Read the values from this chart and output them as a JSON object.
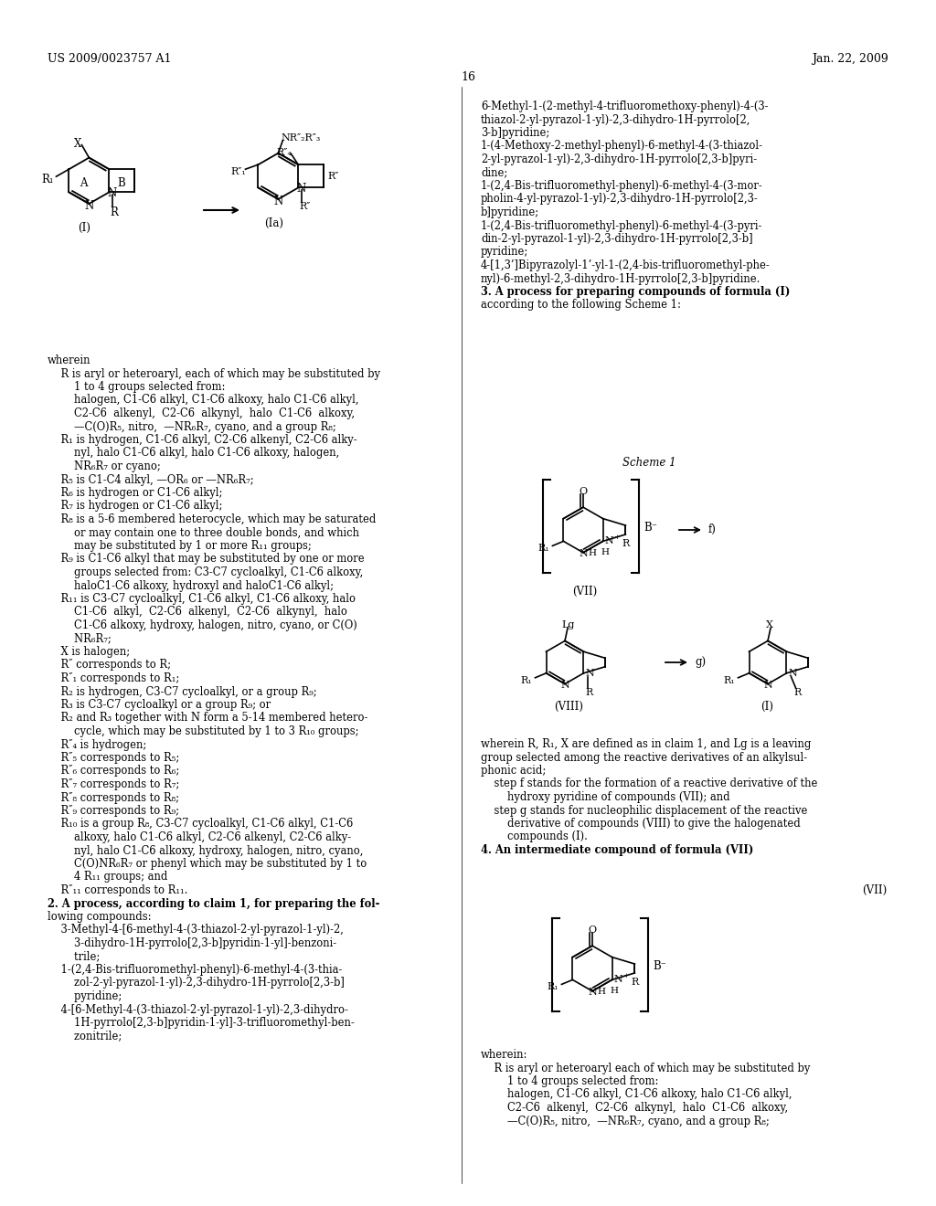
{
  "background_color": "#ffffff",
  "header_left": "US 2009/0023757 A1",
  "header_right": "Jan. 22, 2009",
  "page_number": "16",
  "font_color": "#000000",
  "body_text_col2": [
    "6-Methyl-1-(2-methyl-4-trifluoromethoxy-phenyl)-4-(3-",
    "thiazol-2-yl-pyrazol-1-yl)-2,3-dihydro-1H-pyrrolo[2,",
    "3-b]pyridine;",
    "1-(4-Methoxy-2-methyl-phenyl)-6-methyl-4-(3-thiazol-",
    "2-yl-pyrazol-1-yl)-2,3-dihydro-1H-pyrrolo[2,3-b]pyri-",
    "dine;",
    "1-(2,4-Bis-trifluoromethyl-phenyl)-6-methyl-4-(3-mor-",
    "pholin-4-yl-pyrazol-1-yl)-2,3-dihydro-1H-pyrrolo[2,3-",
    "b]pyridine;",
    "1-(2,4-Bis-trifluoromethyl-phenyl)-6-methyl-4-(3-pyri-",
    "din-2-yl-pyrazol-1-yl)-2,3-dihydro-1H-pyrrolo[2,3-b]",
    "pyridine;",
    "4-[1,3’]Bipyrazolyl-1’-yl-1-(2,4-bis-trifluoromethyl-phe-",
    "nyl)-6-methyl-2,3-dihydro-1H-pyrrolo[2,3-b]pyridine.",
    "3. A process for preparing compounds of formula (I)",
    "according to the following Scheme 1:"
  ],
  "col2_scheme_description": [
    "wherein R, R₁, X are defined as in claim 1, and Lg is a leaving",
    "group selected among the reactive derivatives of an alkylsul-",
    "phonic acid;",
    "    step f stands for the formation of a reactive derivative of the",
    "        hydroxy pyridine of compounds (VII); and",
    "    step g stands for nucleophilic displacement of the reactive",
    "        derivative of compounds (VIII) to give the halogenated",
    "        compounds (I).",
    "4. An intermediate compound of formula (VII)"
  ],
  "col1_body": [
    "wherein",
    "    R is aryl or heteroaryl, each of which may be substituted by",
    "        1 to 4 groups selected from:",
    "        halogen, C1-C6 alkyl, C1-C6 alkoxy, halo C1-C6 alkyl,",
    "        C2-C6  alkenyl,  C2-C6  alkynyl,  halo  C1-C6  alkoxy,",
    "        —C(O)R₅, nitro,  —NR₆R₇, cyano, and a group R₈;",
    "    R₁ is hydrogen, C1-C6 alkyl, C2-C6 alkenyl, C2-C6 alky-",
    "        nyl, halo C1-C6 alkyl, halo C1-C6 alkoxy, halogen,",
    "        NR₆R₇ or cyano;",
    "    R₅ is C1-C4 alkyl, —OR₆ or —NR₆R₇;",
    "    R₆ is hydrogen or C1-C6 alkyl;",
    "    R₇ is hydrogen or C1-C6 alkyl;",
    "    R₈ is a 5-6 membered heterocycle, which may be saturated",
    "        or may contain one to three double bonds, and which",
    "        may be substituted by 1 or more R₁₁ groups;",
    "    R₉ is C1-C6 alkyl that may be substituted by one or more",
    "        groups selected from: C3-C7 cycloalkyl, C1-C6 alkoxy,",
    "        haloC1-C6 alkoxy, hydroxyl and haloC1-C6 alkyl;",
    "    R₁₁ is C3-C7 cycloalkyl, C1-C6 alkyl, C1-C6 alkoxy, halo",
    "        C1-C6  alkyl,  C2-C6  alkenyl,  C2-C6  alkynyl,  halo",
    "        C1-C6 alkoxy, hydroxy, halogen, nitro, cyano, or C(O)",
    "        NR₆R₇;",
    "    X is halogen;",
    "    R″ corresponds to R;",
    "    R″₁ corresponds to R₁;",
    "    R₂ is hydrogen, C3-C7 cycloalkyl, or a group R₉;",
    "    R₃ is C3-C7 cycloalkyl or a group R₉; or",
    "    R₂ and R₃ together with N form a 5-14 membered hetero-",
    "        cycle, which may be substituted by 1 to 3 R₁₀ groups;",
    "    R″₄ is hydrogen;",
    "    R″₅ corresponds to R₅;",
    "    R″₆ corresponds to R₆;",
    "    R″₇ corresponds to R₇;",
    "    R″₈ corresponds to R₈;",
    "    R″₉ corresponds to R₉;",
    "    R₁₀ is a group R₈, C3-C7 cycloalkyl, C1-C6 alkyl, C1-C6",
    "        alkoxy, halo C1-C6 alkyl, C2-C6 alkenyl, C2-C6 alky-",
    "        nyl, halo C1-C6 alkoxy, hydroxy, halogen, nitro, cyano,",
    "        C(O)NR₆R₇ or phenyl which may be substituted by 1 to",
    "        4 R₁₁ groups; and",
    "    R″₁₁ corresponds to R₁₁.",
    "2. A process, according to claim 1, for preparing the fol-",
    "lowing compounds:",
    "    3-Methyl-4-[6-methyl-4-(3-thiazol-2-yl-pyrazol-1-yl)-2,",
    "        3-dihydro-1H-pyrrolo[2,3-b]pyridin-1-yl]-benzoni-",
    "        trile;",
    "    1-(2,4-Bis-trifluoromethyl-phenyl)-6-methyl-4-(3-thia-",
    "        zol-2-yl-pyrazol-1-yl)-2,3-dihydro-1H-pyrrolo[2,3-b]",
    "        pyridine;",
    "    4-[6-Methyl-4-(3-thiazol-2-yl-pyrazol-1-yl)-2,3-dihydro-",
    "        1H-pyrrolo[2,3-b]pyridin-1-yl]-3-trifluoromethyl-ben-",
    "        zonitrile;"
  ],
  "col2_bottom_wherein": [
    "wherein:",
    "    R is aryl or heteroaryl each of which may be substituted by",
    "        1 to 4 groups selected from:",
    "        halogen, C1-C6 alkyl, C1-C6 alkoxy, halo C1-C6 alkyl,",
    "        C2-C6  alkenyl,  C2-C6  alkynyl,  halo  C1-C6  alkoxy,",
    "        —C(O)R₅, nitro,  —NR₆R₇, cyano, and a group R₈;"
  ]
}
